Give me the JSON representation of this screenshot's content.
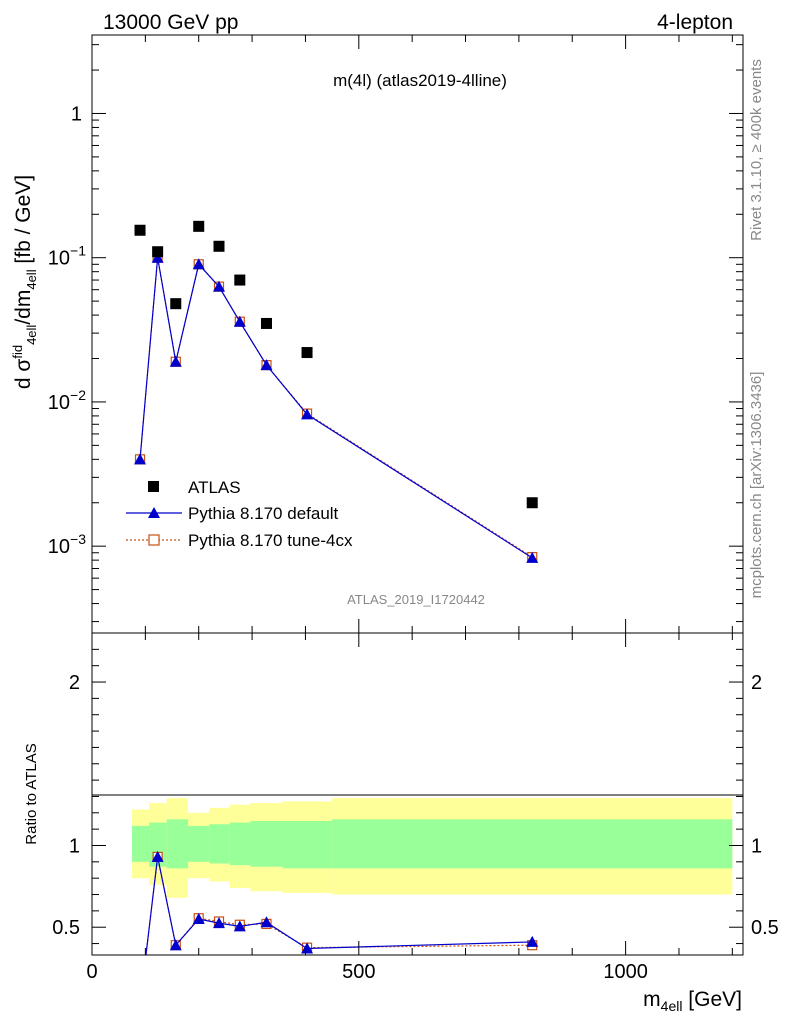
{
  "header": {
    "energy_label": "13000 GeV pp",
    "process_label": "4-lepton"
  },
  "side_labels": {
    "rivet": "Rivet 3.1.10, ≥ 400k events",
    "mcplots": "mcplots.cern.ch [arXiv:1306.3436]"
  },
  "chart_data": [
    {
      "type": "scatter",
      "panel": "main",
      "title": "m(4l) (atlas2019-4lline)",
      "watermark": "ATLAS_2019_I1720442",
      "ylabel": "d σᶠid₄ₑₗₗ/dm₄ₑₗₗ [fb / GeV]",
      "ylabel_parts": {
        "p1": "d σ",
        "p2": "fid",
        "p3": "4ell",
        "p4": "/dm",
        "p5": "4ell",
        "p6": " [fb / GeV]"
      },
      "yscale": "log",
      "xlim": [
        0,
        1220
      ],
      "ylim": [
        0.00025,
        3.5
      ],
      "y_ticks": [
        {
          "value": 1,
          "label": "1",
          "sup": ""
        },
        {
          "value": 0.1,
          "label": "10",
          "sup": "−1"
        },
        {
          "value": 0.01,
          "label": "10",
          "sup": "−2"
        },
        {
          "value": 0.001,
          "label": "10",
          "sup": "−3"
        }
      ],
      "legend_position": "bottom-left",
      "series": [
        {
          "name": "ATLAS",
          "marker": "square",
          "color": "#000000",
          "x": [
            90,
            123,
            157,
            200,
            238,
            277,
            327,
            403,
            825
          ],
          "y": [
            0.155,
            0.11,
            0.048,
            0.165,
            0.12,
            0.07,
            0.035,
            0.022,
            0.002
          ]
        },
        {
          "name": "Pythia 8.170 default",
          "marker": "triangle",
          "color": "#0000cc",
          "x": [
            90,
            123,
            157,
            200,
            238,
            277,
            327,
            403,
            825
          ],
          "y": [
            0.004,
            0.1,
            0.019,
            0.09,
            0.063,
            0.036,
            0.018,
            0.0082,
            0.00083
          ]
        },
        {
          "name": "Pythia 8.170 tune-4cx",
          "marker": "open-square",
          "color": "#c85014",
          "x": [
            90,
            123,
            157,
            200,
            238,
            277,
            327,
            403,
            825
          ],
          "y": [
            0.004,
            0.1,
            0.019,
            0.09,
            0.063,
            0.036,
            0.018,
            0.0083,
            0.00084
          ]
        }
      ]
    },
    {
      "type": "line",
      "panel": "ratio",
      "ylabel": "Ratio to ATLAS",
      "xlabel_parts": {
        "main": "m",
        "sub": "4ell",
        "unit": " [GeV]"
      },
      "xlim": [
        0,
        1220
      ],
      "ylim": [
        0.33,
        2.3
      ],
      "x_ticks": [
        0,
        500,
        1000
      ],
      "y_ticks": [
        0.5,
        1,
        2
      ],
      "bands": {
        "edges": [
          75,
          107,
          140,
          180,
          220,
          258,
          297,
          357,
          450,
          1200
        ],
        "yellow_low": [
          0.8,
          0.76,
          0.68,
          0.8,
          0.78,
          0.74,
          0.72,
          0.71,
          0.7
        ],
        "yellow_high": [
          1.22,
          1.26,
          1.29,
          1.2,
          1.23,
          1.25,
          1.26,
          1.27,
          1.29
        ],
        "green_low": [
          0.9,
          0.87,
          0.86,
          0.9,
          0.89,
          0.88,
          0.87,
          0.86,
          0.86
        ],
        "green_high": [
          1.12,
          1.14,
          1.16,
          1.12,
          1.13,
          1.14,
          1.15,
          1.15,
          1.16
        ],
        "yellow_color": "#ffff99",
        "green_color": "#99ff99"
      },
      "series": [
        {
          "name": "Pythia 8.170 default",
          "marker": "triangle",
          "color": "#0000cc",
          "x": [
            90,
            123,
            157,
            200,
            238,
            277,
            327,
            403,
            825
          ],
          "y": [
            0.026,
            0.93,
            0.39,
            0.55,
            0.525,
            0.505,
            0.53,
            0.37,
            0.41
          ]
        },
        {
          "name": "Pythia 8.170 tune-4cx",
          "marker": "open-square",
          "color": "#c85014",
          "x": [
            90,
            123,
            157,
            200,
            238,
            277,
            327,
            403,
            825
          ],
          "y": [
            0.026,
            0.93,
            0.39,
            0.555,
            0.535,
            0.515,
            0.52,
            0.375,
            0.39
          ]
        }
      ]
    }
  ]
}
